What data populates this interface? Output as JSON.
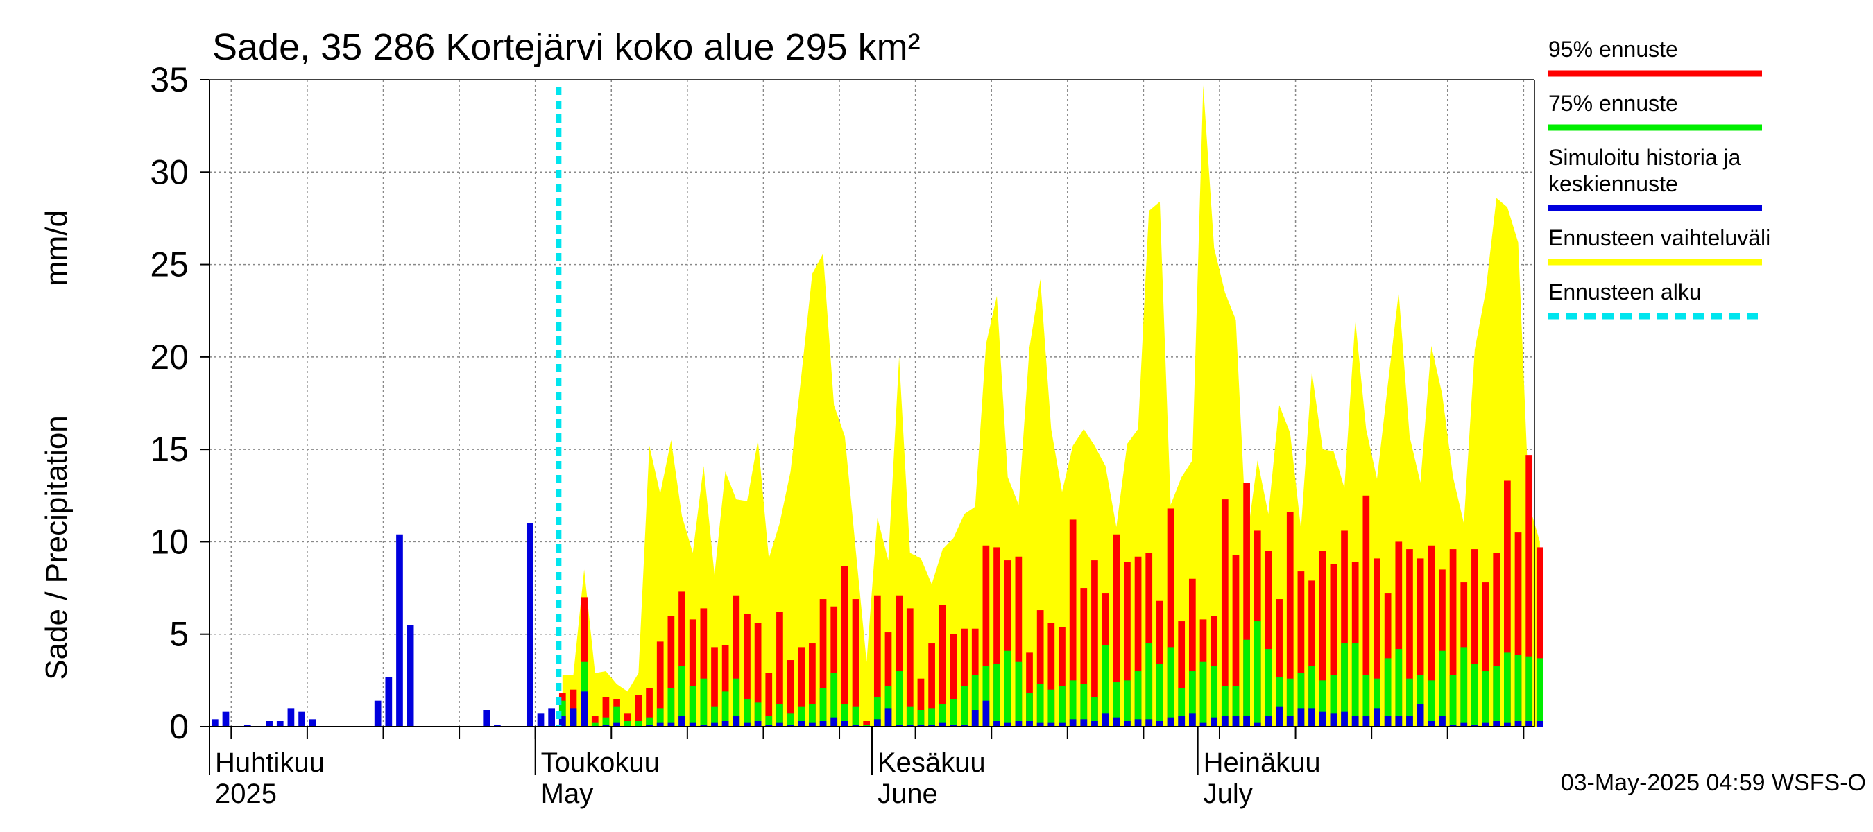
{
  "colors": {
    "p95": "#ff0000",
    "p75": "#00ee00",
    "median": "#0000dd",
    "range": "#ffff00",
    "start": "#00e5ee",
    "grid": "#888888"
  },
  "chart_data": {
    "type": "bar",
    "title": "Sade, 35 286 Kortejärvi koko alue 295 km²",
    "ylabel_left": "Sade / Precipitation",
    "ylabel_right": "mm/d",
    "ylim": [
      0,
      35
    ],
    "yticks": [
      0,
      5,
      10,
      15,
      20,
      25,
      30,
      35
    ],
    "xlim": [
      "2025-04-01",
      "2025-07-31"
    ],
    "month_labels": [
      {
        "date": "2025-04-01",
        "line1": "Huhtikuu",
        "line2": "2025"
      },
      {
        "date": "2025-05-01",
        "line1": "Toukokuu",
        "line2": "May"
      },
      {
        "date": "2025-06-01",
        "line1": "Kesäkuu",
        "line2": "June"
      },
      {
        "date": "2025-07-01",
        "line1": "Heinäkuu",
        "line2": "July"
      }
    ],
    "forecast_start": "2025-05-03",
    "legend": [
      {
        "label": "95% ennuste",
        "color": "#ff0000",
        "style": "solid"
      },
      {
        "label": "75% ennuste",
        "color": "#00ee00",
        "style": "solid"
      },
      {
        "label": "Simuloitu historia ja keskiennuste",
        "color": "#0000dd",
        "style": "solid"
      },
      {
        "label": "Ennusteen vaihteluväli",
        "color": "#ffff00",
        "style": "solid"
      },
      {
        "label": "Ennusteen alku",
        "color": "#00e5ee",
        "style": "dashed"
      }
    ],
    "footer": "03-May-2025 04:59 WSFS-O",
    "history": {
      "start": "2025-04-01",
      "values": [
        0.4,
        0.8,
        0,
        0.1,
        0,
        0.3,
        0.3,
        1.0,
        0.8,
        0.4,
        0,
        0,
        0,
        0,
        0,
        1.4,
        2.7,
        10.4,
        5.5,
        0,
        0,
        0,
        0,
        0,
        0,
        0.9,
        0.1,
        0,
        0,
        11.0,
        0.7,
        1.0
      ]
    },
    "forecast": {
      "start": "2025-05-03",
      "p95": [
        1.8,
        2.0,
        7.0,
        0.6,
        1.6,
        1.5,
        0.7,
        1.7,
        2.1,
        4.6,
        6.0,
        7.3,
        5.8,
        6.4,
        4.3,
        4.4,
        7.1,
        6.1,
        5.6,
        2.9,
        6.2,
        3.6,
        4.3,
        4.5,
        6.9,
        6.5,
        8.7,
        6.9,
        0.3,
        7.1,
        5.1,
        7.1,
        6.4,
        2.6,
        4.5,
        6.6,
        5.0,
        5.3,
        5.3,
        9.8,
        9.7,
        9.0,
        9.2,
        4.0,
        6.3,
        5.6,
        5.4,
        11.2,
        7.5,
        9.0,
        7.2,
        10.4,
        8.9,
        9.2,
        9.4,
        6.8,
        11.8,
        5.7,
        8.0,
        5.8,
        6.0,
        12.3,
        9.3,
        13.2,
        10.6,
        9.5,
        6.9,
        11.6,
        8.4,
        7.9,
        9.5,
        8.8,
        10.6,
        8.9,
        12.5,
        9.1,
        7.2,
        10.0,
        9.6,
        9.1,
        9.8,
        8.5,
        9.6,
        7.8,
        9.6,
        7.8,
        9.4,
        13.3,
        10.5,
        14.7,
        9.7
      ],
      "p75": [
        1.4,
        0.8,
        3.5,
        0.2,
        0.5,
        1.1,
        0.3,
        0.3,
        0.5,
        1.0,
        2.1,
        3.3,
        2.2,
        2.6,
        1.1,
        1.9,
        2.6,
        1.5,
        1.3,
        0.6,
        1.2,
        0.7,
        1.1,
        1.2,
        2.1,
        2.9,
        1.2,
        1.1,
        0.1,
        1.6,
        2.2,
        3.0,
        1.1,
        0.9,
        1.0,
        1.2,
        1.5,
        2.2,
        2.8,
        3.3,
        3.4,
        4.1,
        3.5,
        1.8,
        2.3,
        2.0,
        2.2,
        2.5,
        2.3,
        1.6,
        4.4,
        2.4,
        2.5,
        3.0,
        4.5,
        3.4,
        4.3,
        2.1,
        3.0,
        3.5,
        3.3,
        2.2,
        2.2,
        4.7,
        5.7,
        4.2,
        2.7,
        2.6,
        2.9,
        3.3,
        2.5,
        2.8,
        4.5,
        4.5,
        2.8,
        2.6,
        3.7,
        4.2,
        2.6,
        2.8,
        2.5,
        4.1,
        2.8,
        4.3,
        3.4,
        3.0,
        3.3,
        4.0,
        3.9,
        3.8,
        3.7
      ],
      "median": [
        0.6,
        1.0,
        1.9,
        0.0,
        0.1,
        0.2,
        0.0,
        0.0,
        0.1,
        0.2,
        0.2,
        0.6,
        0.2,
        0.1,
        0.2,
        0.3,
        0.6,
        0.2,
        0.3,
        0.1,
        0.2,
        0.1,
        0.3,
        0.2,
        0.3,
        0.5,
        0.3,
        0.1,
        0.0,
        0.4,
        1.0,
        0.1,
        0.1,
        0.1,
        0.1,
        0.2,
        0.1,
        0.1,
        0.9,
        1.4,
        0.3,
        0.2,
        0.3,
        0.3,
        0.2,
        0.2,
        0.2,
        0.4,
        0.4,
        0.3,
        0.7,
        0.5,
        0.3,
        0.4,
        0.4,
        0.3,
        0.5,
        0.6,
        0.7,
        0.2,
        0.5,
        0.6,
        0.6,
        0.6,
        0.2,
        0.6,
        1.1,
        0.6,
        1.0,
        1.0,
        0.8,
        0.7,
        0.8,
        0.6,
        0.6,
        1.0,
        0.6,
        0.6,
        0.6,
        1.2,
        0.3,
        0.6,
        0.1,
        0.2,
        0.1,
        0.2,
        0.3,
        0.2,
        0.3,
        0.3,
        0.3
      ],
      "upper": [
        2.8,
        2.8,
        8.5,
        2.9,
        3.0,
        2.3,
        1.9,
        2.9,
        15.2,
        12.6,
        15.5,
        11.4,
        9.4,
        14.1,
        8.2,
        13.8,
        12.3,
        12.2,
        15.5,
        9.1,
        11.0,
        13.8,
        19.0,
        24.5,
        25.6,
        17.4,
        15.7,
        9.6,
        3.5,
        11.3,
        9.0,
        20.0,
        9.4,
        9.1,
        7.7,
        9.6,
        10.2,
        11.5,
        11.9,
        20.7,
        23.3,
        13.5,
        12.0,
        20.5,
        24.2,
        16.1,
        12.7,
        15.2,
        16.1,
        15.2,
        14.1,
        10.8,
        15.3,
        16.1,
        27.9,
        28.4,
        12.0,
        13.5,
        14.4,
        34.7,
        25.9,
        23.5,
        22.0,
        10.0,
        14.4,
        11.5,
        17.4,
        15.9,
        10.7,
        19.2,
        15.0,
        14.9,
        12.9,
        22.0,
        16.1,
        13.4,
        18.5,
        23.5,
        15.7,
        13.2,
        20.6,
        18.0,
        13.5,
        11.0,
        20.4,
        23.5,
        28.6,
        28.1,
        26.2,
        12.0,
        10.0
      ]
    }
  }
}
